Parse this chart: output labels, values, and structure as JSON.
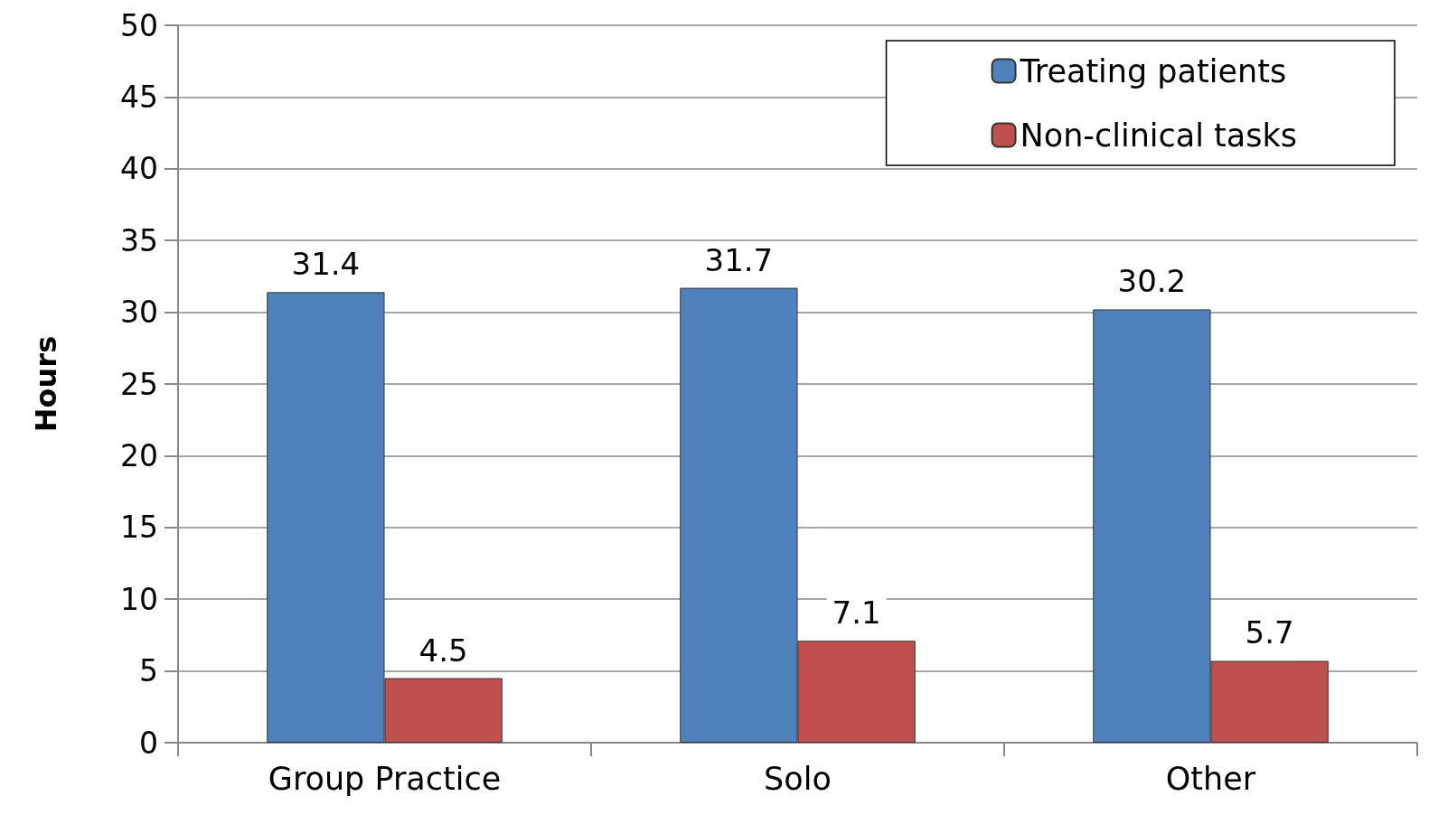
{
  "chart_data": {
    "type": "bar",
    "ylabel": "Hours",
    "categories": [
      "Group Practice",
      "Solo",
      "Other"
    ],
    "series": [
      {
        "name": "Treating patients",
        "color": "#4f81bd",
        "values": [
          31.4,
          31.7,
          30.2
        ]
      },
      {
        "name": "Non-clinical tasks",
        "color": "#c0504d",
        "values": [
          4.5,
          7.1,
          5.7
        ]
      }
    ],
    "ylim": [
      0,
      50
    ],
    "yticks": [
      0,
      5,
      10,
      15,
      20,
      25,
      30,
      35,
      40,
      45,
      50
    ],
    "grid": "y",
    "legend": "top right",
    "data_labels": true
  }
}
